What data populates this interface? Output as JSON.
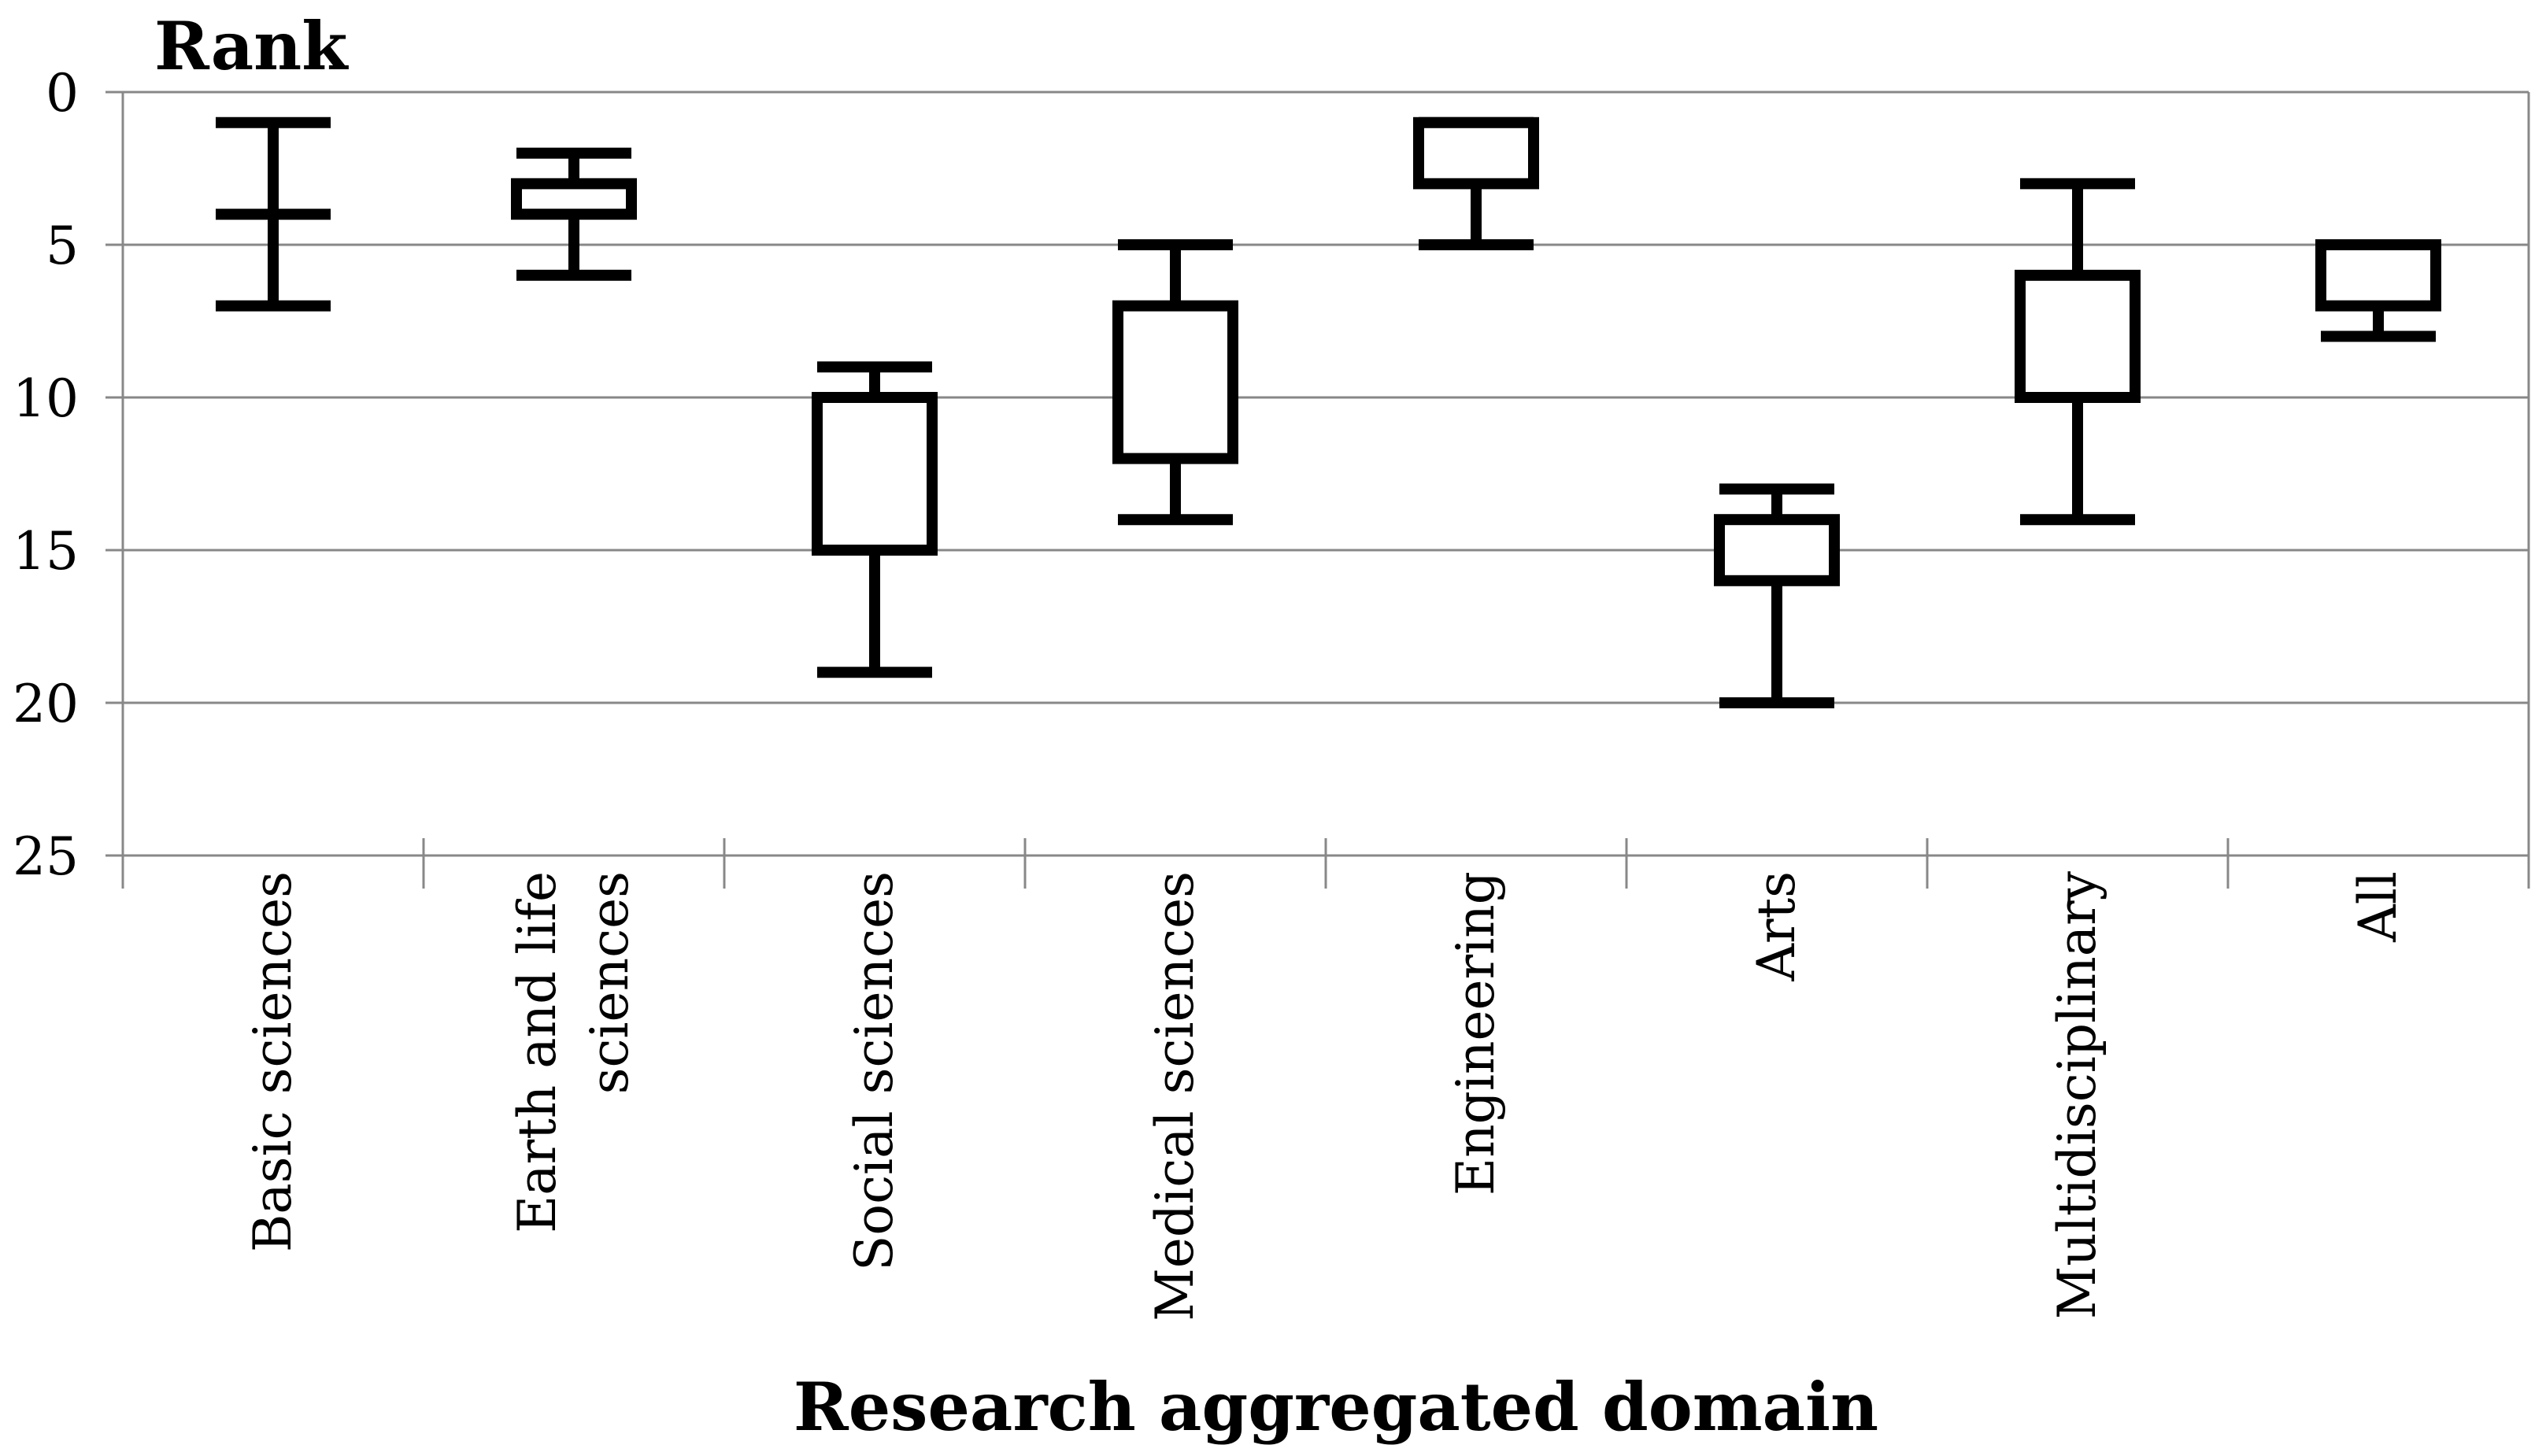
{
  "chart_data": {
    "type": "boxplot",
    "title": "",
    "xlabel": "Research aggregated domain",
    "ylabel": "Rank",
    "yaxis_inverted": true,
    "ylim": [
      0,
      25
    ],
    "yticks": [
      0,
      5,
      10,
      15,
      20,
      25
    ],
    "ygrid": true,
    "categories": [
      "Basic sciences",
      "Earth and life sciences",
      "Social sciences",
      "Medical sciences",
      "Engineering",
      "Arts",
      "Multidisciplinary",
      "All"
    ],
    "category_label_lines": [
      [
        "Basic sciences"
      ],
      [
        "Earth and life",
        "sciences"
      ],
      [
        "Social sciences"
      ],
      [
        "Medical sciences"
      ],
      [
        "Engineering"
      ],
      [
        "Arts"
      ],
      [
        "Multidisciplinary"
      ],
      [
        "All"
      ]
    ],
    "boxes": [
      {
        "whisker_top": 1,
        "q1": 4,
        "q3": 4,
        "whisker_bottom": 7
      },
      {
        "whisker_top": 2,
        "q1": 3,
        "q3": 4,
        "whisker_bottom": 6
      },
      {
        "whisker_top": 9,
        "q1": 10,
        "q3": 15,
        "whisker_bottom": 19
      },
      {
        "whisker_top": 5,
        "q1": 7,
        "q3": 12,
        "whisker_bottom": 14
      },
      {
        "whisker_top": 1,
        "q1": 1,
        "q3": 3,
        "whisker_bottom": 5
      },
      {
        "whisker_top": 13,
        "q1": 14,
        "q3": 16,
        "whisker_bottom": 20
      },
      {
        "whisker_top": 3,
        "q1": 6,
        "q3": 10,
        "whisker_bottom": 14
      },
      {
        "whisker_top": 5,
        "q1": 5,
        "q3": 7,
        "whisker_bottom": 8
      }
    ],
    "colors": {
      "box_stroke": "#000000",
      "box_fill": "#ffffff",
      "grid": "#888888",
      "axis": "#888888"
    }
  }
}
